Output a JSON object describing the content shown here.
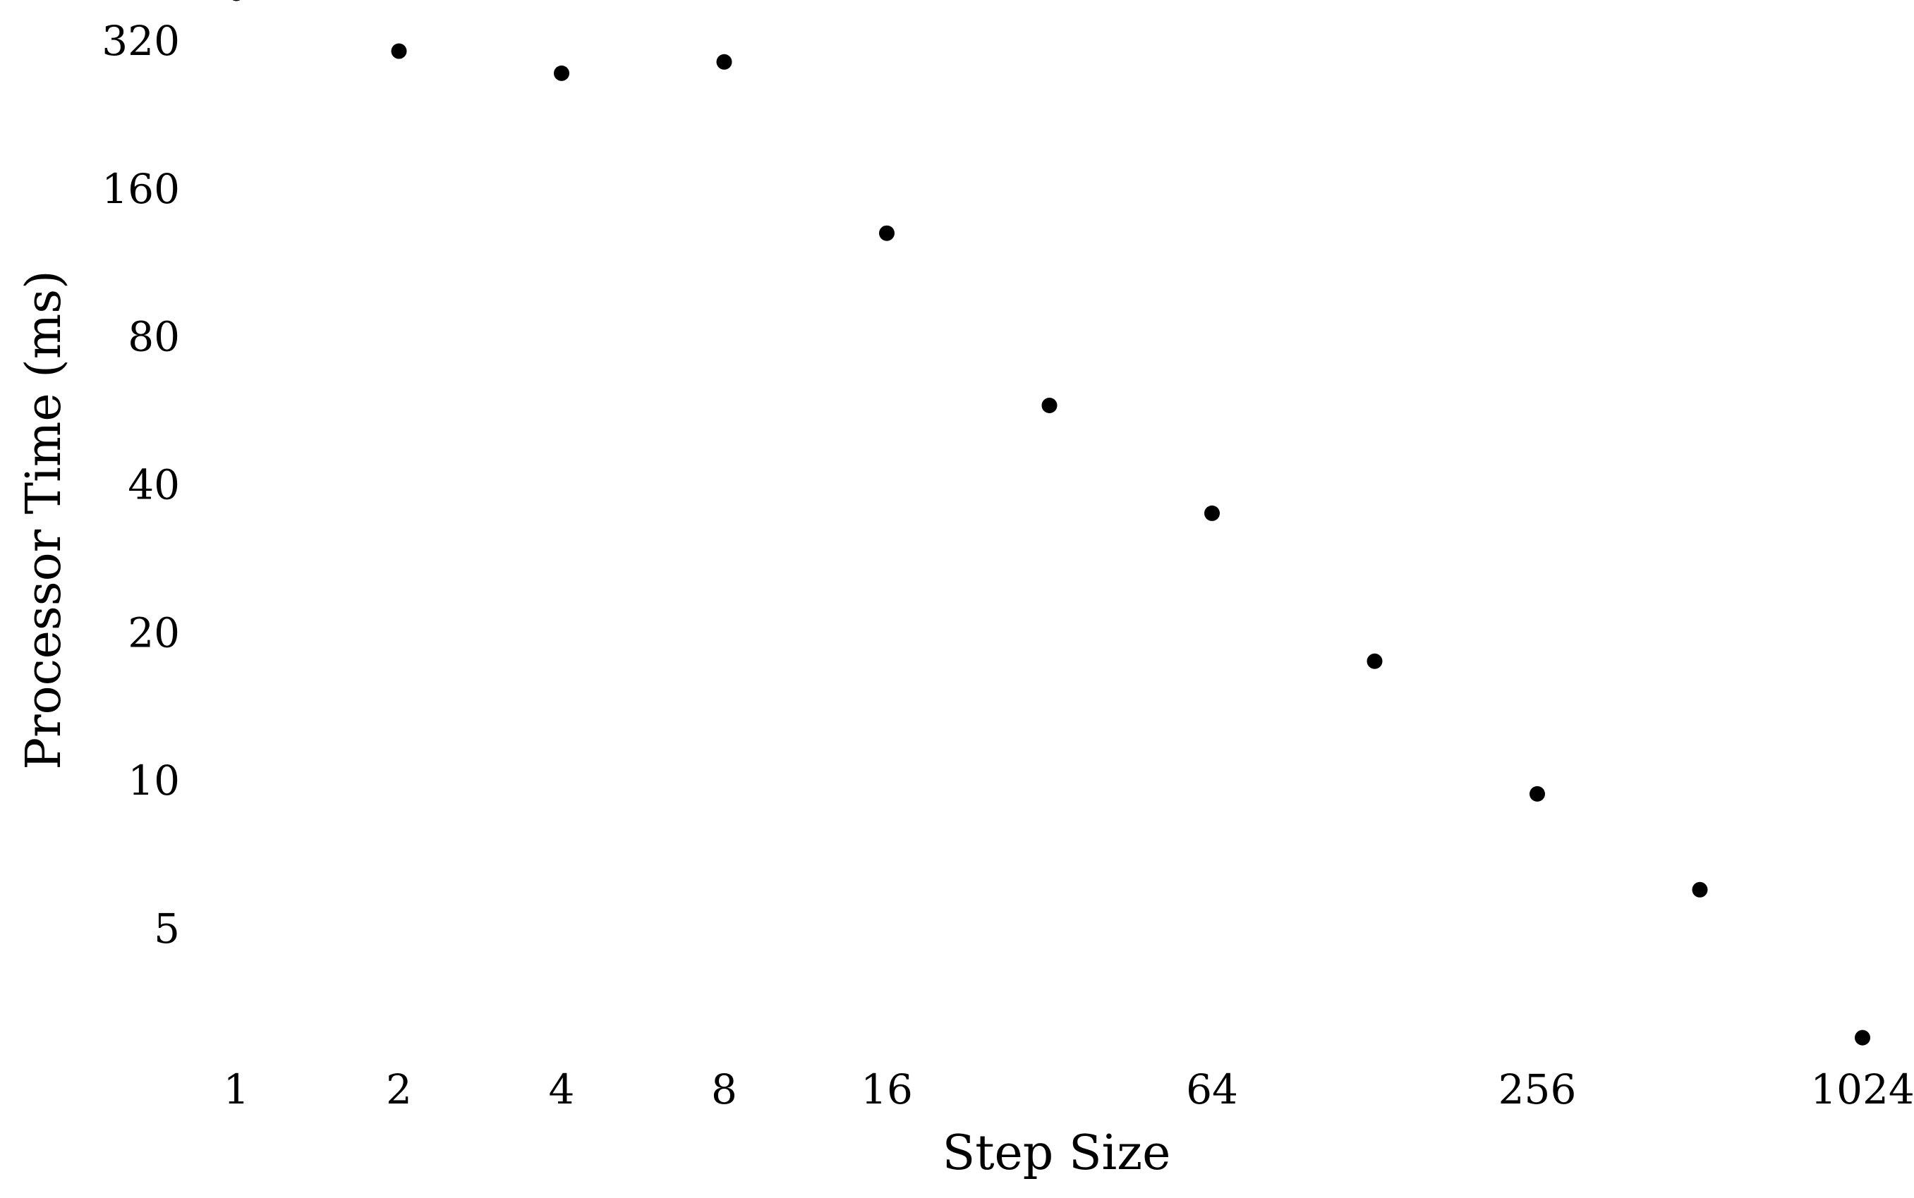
{
  "chart_data": {
    "type": "scatter",
    "title": "",
    "xlabel": "Step Size",
    "ylabel": "Processor Time (ms)",
    "x_scale": "log2",
    "y_scale": "log2",
    "xlim": [
      1,
      1024
    ],
    "ylim": [
      2.8,
      400
    ],
    "x_ticks": [
      1,
      2,
      4,
      8,
      16,
      64,
      256,
      1024
    ],
    "x_tick_labels": [
      "1",
      "2",
      "4",
      "8",
      "16",
      "64",
      "256",
      "1024"
    ],
    "y_ticks": [
      5,
      10,
      20,
      40,
      80,
      160,
      320
    ],
    "y_tick_labels": [
      "5",
      "10",
      "20",
      "40",
      "80",
      "160",
      "320"
    ],
    "grid": false,
    "legend": "none",
    "marker_color": "#000000",
    "series": [
      {
        "x": [
          1,
          2,
          4,
          8,
          16,
          32,
          64,
          128,
          256,
          512,
          1024
        ],
        "y": [
          400,
          305,
          275,
          290,
          130,
          58,
          35,
          17.5,
          9.4,
          6.0,
          3.0
        ]
      }
    ]
  }
}
